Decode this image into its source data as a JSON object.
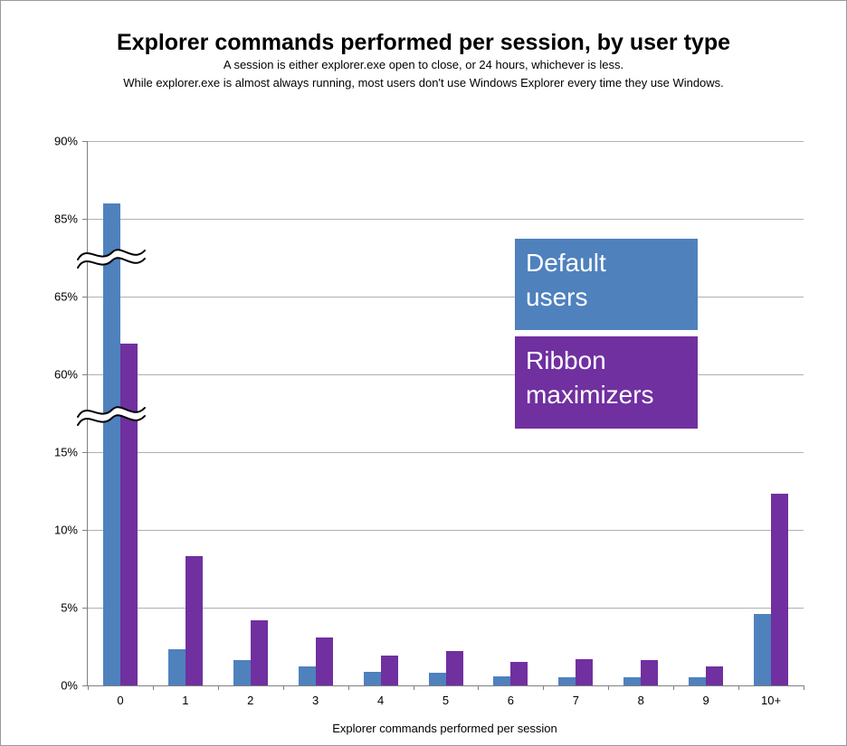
{
  "chart_data": {
    "type": "bar",
    "title": "Explorer commands performed per session, by user type",
    "subtitle_lines": [
      "A session is either explorer.exe open to close, or 24 hours, whichever is less.",
      "While explorer.exe is almost always running, most users don't use Windows Explorer every time they use Windows."
    ],
    "xlabel": "Explorer commands performed per session",
    "categories": [
      "0",
      "1",
      "2",
      "3",
      "4",
      "5",
      "6",
      "7",
      "8",
      "9",
      "10+"
    ],
    "series": [
      {
        "name": "Default users",
        "color": "#4f81bd",
        "values": [
          86,
          2.3,
          1.6,
          1.2,
          0.9,
          0.8,
          0.6,
          0.5,
          0.5,
          0.5,
          4.6
        ]
      },
      {
        "name": "Ribbon maximizers",
        "color": "#7030a0",
        "values": [
          62,
          8.3,
          4.2,
          3.1,
          1.9,
          2.2,
          1.5,
          1.7,
          1.6,
          1.2,
          12.3
        ]
      }
    ],
    "y_axis": {
      "ticks": [
        "0%",
        "5%",
        "10%",
        "15%",
        "60%",
        "65%",
        "85%",
        "90%"
      ],
      "tick_values": [
        0,
        5,
        10,
        15,
        60,
        65,
        85,
        90
      ],
      "breaks": [
        [
          15,
          60
        ],
        [
          65,
          85
        ]
      ],
      "ylim": [
        0,
        90
      ]
    },
    "grid": true,
    "legend_position": "center-right"
  }
}
